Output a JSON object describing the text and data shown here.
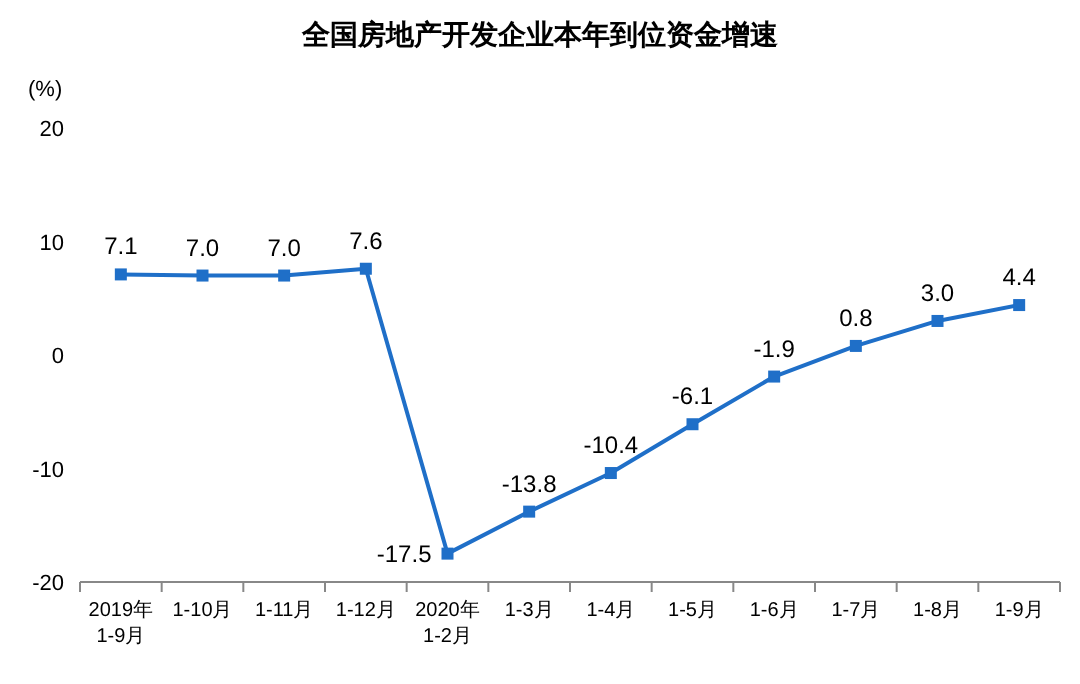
{
  "chart_data": {
    "type": "line",
    "title": "全国房地产开发企业本年到位资金增速",
    "ylabel": "(%)",
    "categories": [
      "2019年\n1-9月",
      "1-10月",
      "1-11月",
      "1-12月",
      "2020年\n1-2月",
      "1-3月",
      "1-4月",
      "1-5月",
      "1-6月",
      "1-7月",
      "1-8月",
      "1-9月"
    ],
    "series": [
      {
        "color": "#1f6fc8",
        "values": [
          7.1,
          7.0,
          7.0,
          7.6,
          -17.5,
          -13.8,
          -10.4,
          -6.1,
          -1.9,
          0.8,
          3.0,
          4.4
        ],
        "value_labels": [
          "7.1",
          "7.0",
          "7.0",
          "7.6",
          "-17.5",
          "-13.8",
          "-10.4",
          "-6.1",
          "-1.9",
          "0.8",
          "3.0",
          "4.4"
        ]
      }
    ],
    "ylim": [
      -20,
      20
    ],
    "yticks": [
      -20,
      -10,
      0,
      10,
      20
    ],
    "marker": "square"
  }
}
